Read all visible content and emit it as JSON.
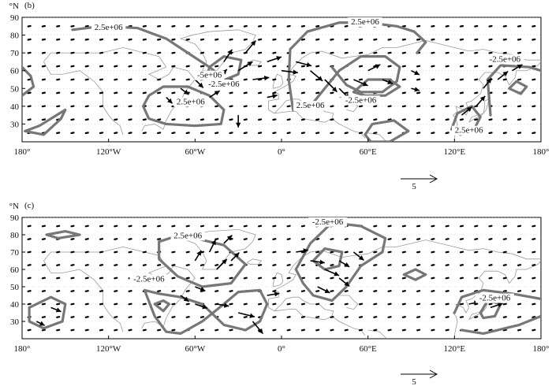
{
  "chart_data": [
    {
      "type": "vector-contour-map",
      "panel_label": "(b)",
      "lon_range": [
        -180,
        180
      ],
      "lat_range": [
        20,
        90
      ],
      "x_ticks": [
        "180°",
        "120°W",
        "60°W",
        "0°",
        "60°E",
        "120°E",
        "180°"
      ],
      "x_tick_values": [
        -180,
        -120,
        -60,
        0,
        60,
        120,
        180
      ],
      "y_ticks": [
        "30",
        "40",
        "50",
        "60",
        "70",
        "80",
        "90"
      ],
      "y_tick_values": [
        30,
        40,
        50,
        60,
        70,
        80,
        90
      ],
      "y_unit": "°N",
      "contour_labels": [
        {
          "text": "2.5e+06",
          "lon": -120,
          "lat": 83
        },
        {
          "text": "2.5e+06",
          "lon": 58,
          "lat": 86
        },
        {
          "text": "-2.5e+06",
          "lon": 155,
          "lat": 65
        },
        {
          "text": "-5e+06",
          "lon": -50,
          "lat": 56
        },
        {
          "text": "-2.5e+06",
          "lon": -40,
          "lat": 51
        },
        {
          "text": "2.5e+06",
          "lon": -63,
          "lat": 41
        },
        {
          "text": "2.5e+06",
          "lon": 20,
          "lat": 39
        },
        {
          "text": "-2.5e+06",
          "lon": 55,
          "lat": 42
        },
        {
          "text": "2.5e+06",
          "lon": 130,
          "lat": 25
        }
      ],
      "contours": [
        [
          [
            -145,
            83
          ],
          [
            -125,
            85
          ],
          [
            -100,
            84
          ],
          [
            -80,
            78
          ],
          [
            -65,
            70
          ],
          [
            -50,
            62
          ],
          [
            -42,
            57
          ]
        ],
        [
          [
            -92,
            46
          ],
          [
            -82,
            51
          ],
          [
            -65,
            51
          ],
          [
            -50,
            46
          ],
          [
            -40,
            38
          ],
          [
            -42,
            30
          ],
          [
            -60,
            29
          ],
          [
            -80,
            30
          ],
          [
            -92,
            33
          ],
          [
            -96,
            40
          ],
          [
            -92,
            46
          ]
        ],
        [
          [
            -168,
            29
          ],
          [
            -158,
            34
          ],
          [
            -150,
            38
          ],
          [
            -153,
            33
          ],
          [
            -165,
            24
          ],
          [
            -178,
            26
          ],
          [
            -168,
            29
          ]
        ],
        [
          [
            -180,
            62
          ],
          [
            -174,
            57
          ],
          [
            -172,
            51
          ],
          [
            -180,
            46
          ]
        ],
        [
          [
            -50,
            62
          ],
          [
            -40,
            68
          ],
          [
            -28,
            66
          ],
          [
            -30,
            58
          ],
          [
            -42,
            54
          ],
          [
            -52,
            56
          ],
          [
            -50,
            62
          ]
        ],
        [
          [
            8,
            38
          ],
          [
            5,
            55
          ],
          [
            6,
            72
          ],
          [
            18,
            82
          ],
          [
            40,
            87
          ],
          [
            60,
            87
          ],
          [
            80,
            85
          ],
          [
            92,
            82
          ],
          [
            100,
            76
          ],
          [
            94,
            70
          ]
        ],
        [
          [
            20,
            40
          ],
          [
            30,
            50
          ],
          [
            40,
            60
          ],
          [
            55,
            68
          ],
          [
            72,
            68
          ],
          [
            82,
            62
          ],
          [
            80,
            54
          ],
          [
            70,
            48
          ],
          [
            55,
            48
          ],
          [
            45,
            52
          ],
          [
            35,
            62
          ]
        ],
        [
          [
            50,
            48
          ],
          [
            60,
            55
          ],
          [
            75,
            55
          ],
          [
            82,
            51
          ],
          [
            72,
            46
          ],
          [
            58,
            46
          ],
          [
            50,
            48
          ]
        ],
        [
          [
            58,
            24
          ],
          [
            63,
            30
          ],
          [
            78,
            32
          ],
          [
            88,
            26
          ],
          [
            75,
            20
          ],
          [
            62,
            20
          ],
          [
            58,
            24
          ]
        ],
        [
          [
            118,
            27
          ],
          [
            122,
            36
          ],
          [
            132,
            40
          ],
          [
            138,
            34
          ],
          [
            133,
            26
          ],
          [
            124,
            24
          ],
          [
            118,
            27
          ]
        ],
        [
          [
            145,
            35
          ],
          [
            143,
            55
          ],
          [
            152,
            63
          ],
          [
            172,
            62
          ],
          [
            180,
            60
          ]
        ],
        [
          [
            158,
            50
          ],
          [
            163,
            54
          ],
          [
            170,
            51
          ],
          [
            166,
            47
          ],
          [
            158,
            50
          ]
        ]
      ],
      "vectors": [
        {
          "lon": -50,
          "lat": 45,
          "u": 2.5,
          "v": 1.6
        },
        {
          "lon": -45,
          "lat": 55,
          "u": 2.5,
          "v": 2.5
        },
        {
          "lon": -40,
          "lat": 65,
          "u": 2,
          "v": 3
        },
        {
          "lon": -30,
          "lat": 60,
          "u": 3.5,
          "v": 2.2
        },
        {
          "lon": -25,
          "lat": 70,
          "u": 2.5,
          "v": 3
        },
        {
          "lon": -20,
          "lat": 55,
          "u": 4,
          "v": 0.5
        },
        {
          "lon": -10,
          "lat": 65,
          "u": 3.5,
          "v": 1.2
        },
        {
          "lon": 0,
          "lat": 60,
          "u": 4,
          "v": -0.5
        },
        {
          "lon": 10,
          "lat": 65,
          "u": 3.8,
          "v": -1
        },
        {
          "lon": 20,
          "lat": 60,
          "u": 3,
          "v": -2.5
        },
        {
          "lon": 30,
          "lat": 55,
          "u": 3,
          "v": -3
        },
        {
          "lon": 40,
          "lat": 50,
          "u": 2.5,
          "v": -2.5
        },
        {
          "lon": 50,
          "lat": 55,
          "u": 3.5,
          "v": -1.5
        },
        {
          "lon": 60,
          "lat": 60,
          "u": 3,
          "v": 1.5
        },
        {
          "lon": 70,
          "lat": 55,
          "u": 2.5,
          "v": -1
        },
        {
          "lon": -60,
          "lat": 55,
          "u": 2,
          "v": -2
        },
        {
          "lon": -70,
          "lat": 50,
          "u": 2,
          "v": -1.5
        },
        {
          "lon": -80,
          "lat": 45,
          "u": 1.5,
          "v": -1.5
        },
        {
          "lon": -30,
          "lat": 35,
          "u": 0,
          "v": -3
        },
        {
          "lon": -10,
          "lat": 45,
          "u": 2.5,
          "v": 0.5
        },
        {
          "lon": 125,
          "lat": 35,
          "u": 2.5,
          "v": 2
        },
        {
          "lon": 135,
          "lat": 40,
          "u": 2.2,
          "v": 2.5
        },
        {
          "lon": 140,
          "lat": 50,
          "u": 2,
          "v": 2.5
        },
        {
          "lon": 150,
          "lat": 55,
          "u": 2.5,
          "v": 2
        },
        {
          "lon": 160,
          "lat": 60,
          "u": 2.5,
          "v": 1.5
        },
        {
          "lon": 90,
          "lat": 50,
          "u": 2,
          "v": -0.5
        },
        {
          "lon": 90,
          "lat": 60,
          "u": 2,
          "v": -1
        }
      ],
      "reference_vector": {
        "label": "5",
        "magnitude": 5
      }
    },
    {
      "type": "vector-contour-map",
      "panel_label": "(c)",
      "lon_range": [
        -180,
        180
      ],
      "lat_range": [
        20,
        90
      ],
      "x_ticks": [
        "180°",
        "120°W",
        "60°W",
        "0°",
        "60°E",
        "120°E",
        "180°"
      ],
      "x_tick_values": [
        -180,
        -120,
        -60,
        0,
        60,
        120,
        180
      ],
      "y_ticks": [
        "30",
        "40",
        "50",
        "60",
        "70",
        "80",
        "90"
      ],
      "y_tick_values": [
        30,
        40,
        50,
        60,
        70,
        80,
        90
      ],
      "y_unit": "°N",
      "contour_labels": [
        {
          "text": "2.5e+06",
          "lon": -65,
          "lat": 78
        },
        {
          "text": "-2.5e+06",
          "lon": 32,
          "lat": 86
        },
        {
          "text": "-2.5e+06",
          "lon": -92,
          "lat": 53
        },
        {
          "text": "-2.5e+06",
          "lon": 148,
          "lat": 42
        }
      ],
      "contours": [
        [
          [
            -163,
            80
          ],
          [
            -150,
            82
          ],
          [
            -140,
            80
          ],
          [
            -155,
            78
          ],
          [
            -163,
            80
          ]
        ],
        [
          [
            -175,
            38
          ],
          [
            -160,
            44
          ],
          [
            -150,
            40
          ],
          [
            -152,
            30
          ],
          [
            -165,
            26
          ],
          [
            -175,
            30
          ],
          [
            -175,
            38
          ]
        ],
        [
          [
            -85,
            76
          ],
          [
            -70,
            80
          ],
          [
            -40,
            74
          ],
          [
            -25,
            63
          ],
          [
            -35,
            52
          ],
          [
            -55,
            50
          ],
          [
            -72,
            56
          ],
          [
            -85,
            66
          ],
          [
            -85,
            76
          ]
        ],
        [
          [
            -95,
            48
          ],
          [
            -88,
            33
          ],
          [
            -80,
            24
          ],
          [
            -70,
            23
          ],
          [
            -55,
            30
          ],
          [
            -40,
            40
          ],
          [
            -30,
            47
          ],
          [
            -15,
            48
          ],
          [
            -10,
            40
          ],
          [
            -15,
            30
          ],
          [
            -25,
            25
          ],
          [
            -40,
            28
          ],
          [
            -55,
            40
          ],
          [
            -70,
            44
          ],
          [
            -85,
            46
          ],
          [
            -95,
            48
          ]
        ],
        [
          [
            -88,
            40
          ],
          [
            -82,
            42
          ],
          [
            -78,
            40
          ],
          [
            -82,
            36
          ],
          [
            -88,
            40
          ]
        ],
        [
          [
            10,
            60
          ],
          [
            20,
            75
          ],
          [
            35,
            87
          ],
          [
            55,
            85
          ],
          [
            72,
            78
          ],
          [
            70,
            70
          ],
          [
            55,
            62
          ],
          [
            45,
            50
          ],
          [
            35,
            42
          ],
          [
            22,
            45
          ],
          [
            15,
            52
          ],
          [
            10,
            60
          ]
        ],
        [
          [
            22,
            65
          ],
          [
            30,
            72
          ],
          [
            42,
            70
          ],
          [
            40,
            62
          ],
          [
            30,
            60
          ],
          [
            22,
            65
          ]
        ],
        [
          [
            85,
            57
          ],
          [
            93,
            60
          ],
          [
            100,
            57
          ],
          [
            93,
            54
          ],
          [
            85,
            57
          ]
        ],
        [
          [
            120,
            35
          ],
          [
            125,
            44
          ],
          [
            140,
            48
          ],
          [
            160,
            46
          ],
          [
            180,
            43
          ]
        ],
        [
          [
            138,
            35
          ],
          [
            143,
            42
          ],
          [
            152,
            40
          ],
          [
            148,
            33
          ],
          [
            140,
            32
          ],
          [
            138,
            35
          ]
        ],
        [
          [
            125,
            25
          ],
          [
            140,
            23
          ],
          [
            165,
            28
          ],
          [
            180,
            33
          ]
        ]
      ],
      "vectors": [
        {
          "lon": -60,
          "lat": 65,
          "u": 1.5,
          "v": 2.5
        },
        {
          "lon": -50,
          "lat": 70,
          "u": 1.5,
          "v": 3
        },
        {
          "lon": -40,
          "lat": 75,
          "u": 2,
          "v": 2
        },
        {
          "lon": -45,
          "lat": 60,
          "u": 2.5,
          "v": 2.5
        },
        {
          "lon": -35,
          "lat": 65,
          "u": 2,
          "v": 2
        },
        {
          "lon": -60,
          "lat": 50,
          "u": 2.5,
          "v": -1
        },
        {
          "lon": -70,
          "lat": 45,
          "u": 2,
          "v": -1.5
        },
        {
          "lon": -60,
          "lat": 40,
          "u": 3,
          "v": -1
        },
        {
          "lon": -45,
          "lat": 40,
          "u": 3,
          "v": -0.5
        },
        {
          "lon": -30,
          "lat": 35,
          "u": 4,
          "v": -1
        },
        {
          "lon": -20,
          "lat": 30,
          "u": 2.5,
          "v": -3
        },
        {
          "lon": 10,
          "lat": 70,
          "u": 3,
          "v": 0.5
        },
        {
          "lon": 20,
          "lat": 65,
          "u": 3.5,
          "v": -0.5
        },
        {
          "lon": 30,
          "lat": 60,
          "u": 3.5,
          "v": -1.5
        },
        {
          "lon": 40,
          "lat": 65,
          "u": 2.5,
          "v": -1.5
        },
        {
          "lon": 50,
          "lat": 70,
          "u": 2.5,
          "v": -2
        },
        {
          "lon": 25,
          "lat": 50,
          "u": 3,
          "v": -1.5
        },
        {
          "lon": 40,
          "lat": 55,
          "u": 2.5,
          "v": -2
        },
        {
          "lon": -10,
          "lat": 45,
          "u": 3,
          "v": 0.5
        },
        {
          "lon": 130,
          "lat": 40,
          "u": 2.5,
          "v": 0.5
        },
        {
          "lon": 145,
          "lat": 38,
          "u": 3,
          "v": 1
        },
        {
          "lon": -160,
          "lat": 38,
          "u": 2.5,
          "v": -1
        },
        {
          "lon": -170,
          "lat": 30,
          "u": 2,
          "v": -1
        }
      ],
      "reference_vector": {
        "label": "5",
        "magnitude": 5
      }
    }
  ]
}
